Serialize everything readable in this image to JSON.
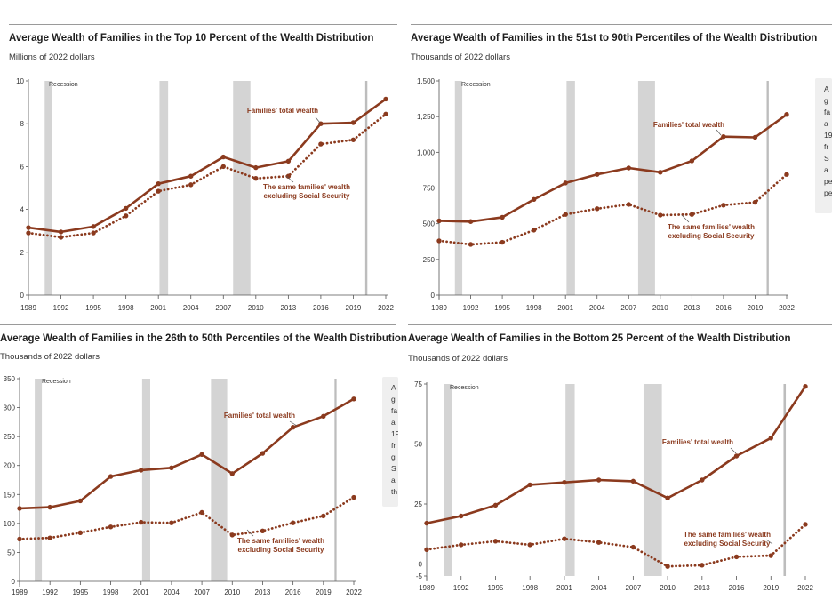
{
  "chart_data": [
    {
      "type": "line",
      "title": "Average Wealth of Families in the Top 10 Percent of the Wealth Distribution",
      "units": "Millions of 2022 dollars",
      "categories": [
        "1989",
        "1992",
        "1995",
        "1998",
        "2001",
        "2004",
        "2007",
        "2010",
        "2013",
        "2016",
        "2019",
        "2022"
      ],
      "yticks": [
        "0",
        "2",
        "4",
        "6",
        "8",
        "10"
      ],
      "ylim": [
        0,
        10
      ],
      "recession_label": "Recession",
      "recessions": [
        [
          1990.5,
          1991.2
        ],
        [
          2001.1,
          2001.9
        ],
        [
          2007.9,
          2009.5
        ],
        [
          2020.1,
          2020.3
        ]
      ],
      "series": [
        {
          "name": "Families' total wealth",
          "style": "solid",
          "values": [
            3.15,
            2.95,
            3.2,
            4.05,
            5.2,
            5.55,
            6.45,
            5.95,
            6.25,
            8.0,
            8.05,
            9.15
          ]
        },
        {
          "name": "The same families' wealth excluding Social Security",
          "style": "dotted",
          "values": [
            2.9,
            2.7,
            2.9,
            3.7,
            4.85,
            5.15,
            6.0,
            5.45,
            5.55,
            7.05,
            7.25,
            8.45
          ]
        }
      ]
    },
    {
      "type": "line",
      "title": "Average Wealth of Families in the 51st to 90th Percentiles of the Wealth Distribution",
      "units": "Thousands of 2022 dollars",
      "categories": [
        "1989",
        "1992",
        "1995",
        "1998",
        "2001",
        "2004",
        "2007",
        "2010",
        "2013",
        "2016",
        "2019",
        "2022"
      ],
      "yticks": [
        "0",
        "250",
        "500",
        "750",
        "1,000",
        "1,250",
        "1,500"
      ],
      "ylim": [
        0,
        1500
      ],
      "recession_label": "Recession",
      "recessions": [
        [
          1990.5,
          1991.2
        ],
        [
          2001.1,
          2001.9
        ],
        [
          2007.9,
          2009.5
        ],
        [
          2020.1,
          2020.3
        ]
      ],
      "series": [
        {
          "name": "Families' total wealth",
          "style": "solid",
          "values": [
            520,
            515,
            545,
            670,
            785,
            845,
            890,
            860,
            940,
            1110,
            1105,
            1265
          ]
        },
        {
          "name": "The same families' wealth excluding Social Security",
          "style": "dotted",
          "values": [
            380,
            355,
            370,
            455,
            565,
            605,
            635,
            560,
            565,
            630,
            650,
            845
          ]
        }
      ]
    },
    {
      "type": "line",
      "title": "Average Wealth of Families in the 26th to 50th Percentiles of the Wealth Distribution",
      "units": "Thousands of 2022 dollars",
      "categories": [
        "1989",
        "1992",
        "1995",
        "1998",
        "2001",
        "2004",
        "2007",
        "2010",
        "2013",
        "2016",
        "2019",
        "2022"
      ],
      "yticks": [
        "0",
        "50",
        "100",
        "150",
        "200",
        "250",
        "300",
        "350"
      ],
      "ylim": [
        0,
        350
      ],
      "recession_label": "Recession",
      "recessions": [
        [
          1990.5,
          1991.2
        ],
        [
          2001.1,
          2001.9
        ],
        [
          2007.9,
          2009.5
        ],
        [
          2020.1,
          2020.3
        ]
      ],
      "series": [
        {
          "name": "Families' total wealth",
          "style": "solid",
          "values": [
            126,
            128,
            139,
            181,
            192,
            196,
            219,
            186,
            221,
            266,
            285,
            315
          ]
        },
        {
          "name": "The same families' wealth excluding Social Security",
          "style": "dotted",
          "values": [
            73,
            75,
            84,
            94,
            102,
            101,
            119,
            80,
            87,
            101,
            113,
            145
          ]
        }
      ]
    },
    {
      "type": "line",
      "title": "Average Wealth of Families in the Bottom 25 Percent of the Wealth Distribution",
      "units": "Thousands of 2022 dollars",
      "categories": [
        "1989",
        "1992",
        "1995",
        "1998",
        "2001",
        "2004",
        "2007",
        "2010",
        "2013",
        "2016",
        "2019",
        "2022"
      ],
      "yticks": [
        "-5",
        "0",
        "25",
        "50",
        "75"
      ],
      "ylim": [
        -5,
        75
      ],
      "recession_label": "Recession",
      "recessions": [
        [
          1990.5,
          1991.2
        ],
        [
          2001.1,
          2001.9
        ],
        [
          2007.9,
          2009.5
        ],
        [
          2020.1,
          2020.3
        ]
      ],
      "series": [
        {
          "name": "Families' total wealth",
          "style": "solid",
          "values": [
            17,
            20,
            24.5,
            33,
            34,
            35,
            34.5,
            27.5,
            35,
            45,
            52.5,
            74
          ]
        },
        {
          "name": "The same families' wealth excluding Social Security",
          "style": "dotted",
          "values": [
            6,
            8,
            9.5,
            8,
            10.5,
            9,
            7,
            -1,
            -0.5,
            3,
            3.5,
            16.5
          ]
        }
      ]
    }
  ],
  "side_notes": [
    [
      "A",
      "g",
      "fa",
      "a",
      "19",
      "fr",
      "S",
      "a",
      "pe",
      "pe"
    ],
    [
      "A",
      "g",
      "fa",
      "a",
      "19",
      "fr",
      "g",
      "S",
      "a",
      "th"
    ]
  ]
}
